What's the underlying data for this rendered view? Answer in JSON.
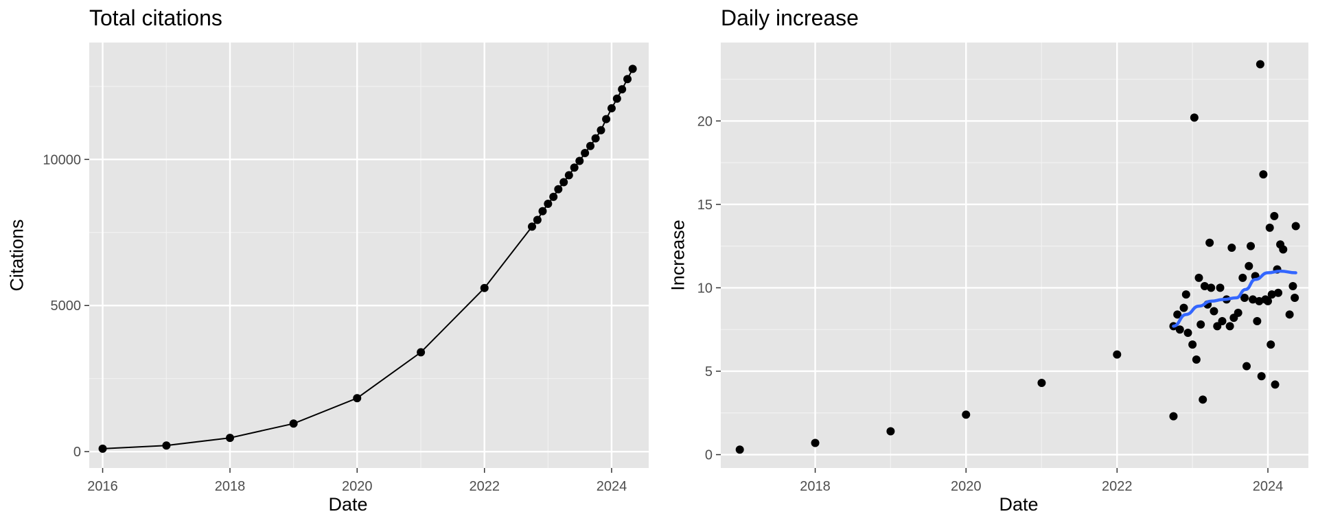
{
  "chart_data": [
    {
      "type": "line",
      "title": "Total citations",
      "xlabel": "Date",
      "ylabel": "Citations",
      "xlim": [
        "2015-10-16",
        "2024-08-01"
      ],
      "ylim": [
        -560,
        14000
      ],
      "x_ticks": [
        {
          "date": "2016-01-01",
          "label": "2016"
        },
        {
          "date": "2018-01-01",
          "label": "2018"
        },
        {
          "date": "2020-01-01",
          "label": "2020"
        },
        {
          "date": "2022-01-01",
          "label": "2022"
        },
        {
          "date": "2024-01-01",
          "label": "2024"
        }
      ],
      "y_ticks": [
        0,
        5000,
        10000
      ],
      "grid": true,
      "series": [
        {
          "color": "#000000",
          "points": [
            [
              "2016-01-01",
              100
            ],
            [
              "2017-01-01",
              210
            ],
            [
              "2018-01-01",
              470
            ],
            [
              "2019-01-01",
              960
            ],
            [
              "2020-01-01",
              1830
            ],
            [
              "2021-01-01",
              3400
            ],
            [
              "2022-01-01",
              5600
            ],
            [
              "2022-10-01",
              7700
            ],
            [
              "2022-11-01",
              7930
            ],
            [
              "2022-12-01",
              8230
            ],
            [
              "2023-01-01",
              8480
            ],
            [
              "2023-02-01",
              8720
            ],
            [
              "2023-03-01",
              8980
            ],
            [
              "2023-04-01",
              9220
            ],
            [
              "2023-05-01",
              9460
            ],
            [
              "2023-06-01",
              9720
            ],
            [
              "2023-07-01",
              9950
            ],
            [
              "2023-08-01",
              10220
            ],
            [
              "2023-09-01",
              10460
            ],
            [
              "2023-10-01",
              10720
            ],
            [
              "2023-11-01",
              11000
            ],
            [
              "2023-12-01",
              11380
            ],
            [
              "2024-01-01",
              11750
            ],
            [
              "2024-02-01",
              12080
            ],
            [
              "2024-03-01",
              12400
            ],
            [
              "2024-04-01",
              12750
            ],
            [
              "2024-05-01",
              13100
            ]
          ]
        }
      ]
    },
    {
      "type": "scatter",
      "title": "Daily increase",
      "xlabel": "Date",
      "ylabel": "Increase",
      "xlim": [
        "2016-10-01",
        "2024-07-15"
      ],
      "ylim": [
        -0.8,
        24.7
      ],
      "x_ticks": [
        {
          "date": "2018-01-01",
          "label": "2018"
        },
        {
          "date": "2020-01-01",
          "label": "2020"
        },
        {
          "date": "2022-01-01",
          "label": "2022"
        },
        {
          "date": "2024-01-01",
          "label": "2024"
        }
      ],
      "y_ticks": [
        0,
        5,
        10,
        15,
        20
      ],
      "grid": true,
      "series": [
        {
          "color": "#000000",
          "points": [
            [
              "2017-01-01",
              0.3
            ],
            [
              "2018-01-01",
              0.7
            ],
            [
              "2019-01-01",
              1.4
            ],
            [
              "2020-01-01",
              2.4
            ],
            [
              "2021-01-01",
              4.3
            ],
            [
              "2022-01-01",
              6.0
            ],
            [
              "2022-10-01",
              2.3
            ],
            [
              "2022-10-01",
              7.7
            ],
            [
              "2022-10-20",
              8.4
            ],
            [
              "2022-11-01",
              7.5
            ],
            [
              "2022-11-20",
              8.8
            ],
            [
              "2022-12-01",
              9.6
            ],
            [
              "2022-12-10",
              7.3
            ],
            [
              "2023-01-01",
              6.6
            ],
            [
              "2023-01-10",
              20.2
            ],
            [
              "2023-01-20",
              5.7
            ],
            [
              "2023-02-01",
              10.6
            ],
            [
              "2023-02-10",
              7.8
            ],
            [
              "2023-02-20",
              3.3
            ],
            [
              "2023-03-01",
              10.1
            ],
            [
              "2023-03-15",
              9.0
            ],
            [
              "2023-03-25",
              12.7
            ],
            [
              "2023-04-01",
              10.0
            ],
            [
              "2023-04-15",
              8.6
            ],
            [
              "2023-05-01",
              7.7
            ],
            [
              "2023-05-15",
              10.0
            ],
            [
              "2023-05-25",
              8.0
            ],
            [
              "2023-06-15",
              9.3
            ],
            [
              "2023-07-01",
              7.7
            ],
            [
              "2023-07-10",
              12.4
            ],
            [
              "2023-07-20",
              8.2
            ],
            [
              "2023-08-10",
              8.5
            ],
            [
              "2023-09-01",
              10.6
            ],
            [
              "2023-09-10",
              9.4
            ],
            [
              "2023-09-20",
              5.3
            ],
            [
              "2023-10-01",
              11.3
            ],
            [
              "2023-10-10",
              12.5
            ],
            [
              "2023-10-20",
              9.3
            ],
            [
              "2023-11-01",
              10.7
            ],
            [
              "2023-11-10",
              8.0
            ],
            [
              "2023-11-20",
              9.2
            ],
            [
              "2023-12-01",
              4.7
            ],
            [
              "2023-12-10",
              16.8
            ],
            [
              "2023-12-20",
              9.3
            ],
            [
              "2024-01-01",
              9.2
            ],
            [
              "2024-01-10",
              13.6
            ],
            [
              "2024-01-15",
              6.6
            ],
            [
              "2024-01-20",
              9.6
            ],
            [
              "2024-02-01",
              14.3
            ],
            [
              "2024-02-05",
              4.2
            ],
            [
              "2024-02-15",
              11.1
            ],
            [
              "2024-02-20",
              9.7
            ],
            [
              "2024-03-01",
              12.6
            ],
            [
              "2024-03-15",
              12.3
            ],
            [
              "2024-04-15",
              8.4
            ],
            [
              "2024-05-01",
              10.1
            ],
            [
              "2024-05-10",
              9.4
            ],
            [
              "2024-05-15",
              13.7
            ],
            [
              "2023-11-25",
              23.4
            ]
          ]
        },
        {
          "type": "line",
          "color": "#3366ff",
          "points": [
            [
              "2022-10-01",
              7.7
            ],
            [
              "2022-12-01",
              8.4
            ],
            [
              "2023-02-01",
              8.9
            ],
            [
              "2023-04-01",
              9.2
            ],
            [
              "2023-06-01",
              9.3
            ],
            [
              "2023-08-01",
              9.4
            ],
            [
              "2023-09-15",
              9.9
            ],
            [
              "2023-11-01",
              10.5
            ],
            [
              "2024-01-01",
              10.9
            ],
            [
              "2024-03-01",
              11.0
            ],
            [
              "2024-05-15",
              10.9
            ]
          ]
        }
      ]
    }
  ]
}
